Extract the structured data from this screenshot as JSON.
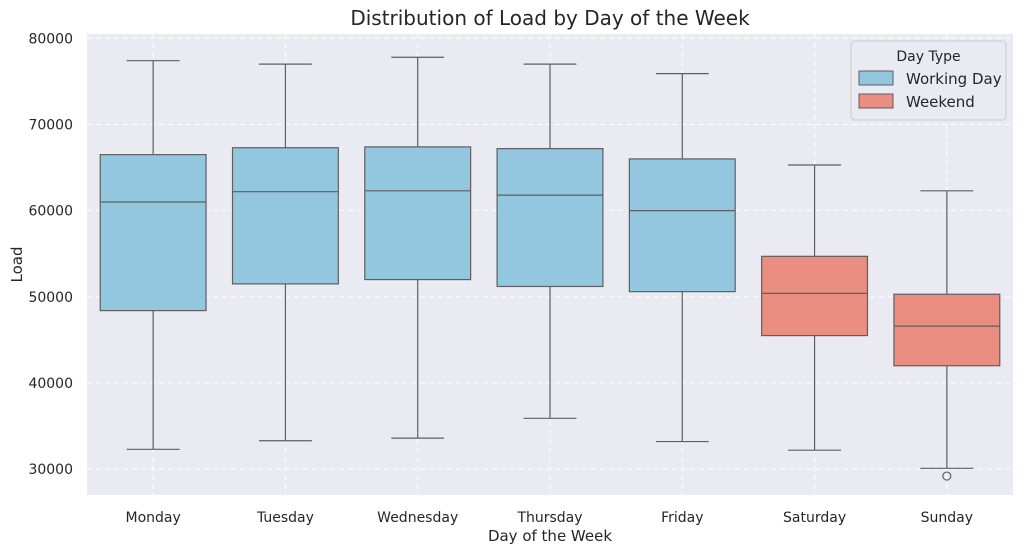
{
  "chart_data": {
    "type": "box",
    "title": "Distribution of Load by Day of the Week",
    "xlabel": "Day of the Week",
    "ylabel": "Load",
    "ylim": [
      27000,
      80500
    ],
    "yticks": [
      30000,
      40000,
      50000,
      60000,
      70000,
      80000
    ],
    "grid": true,
    "legend": {
      "title": "Day Type",
      "placement": "top-right",
      "entries": [
        {
          "label": "Working Day",
          "color": "#92c7df"
        },
        {
          "label": "Weekend",
          "color": "#e98e80"
        }
      ]
    },
    "categories": [
      "Monday",
      "Tuesday",
      "Wednesday",
      "Thursday",
      "Friday",
      "Saturday",
      "Sunday"
    ],
    "boxes": [
      {
        "day": "Monday",
        "group": "Working Day",
        "whisker_low": 32300,
        "q1": 48400,
        "median": 61000,
        "q3": 66500,
        "whisker_high": 77400,
        "outliers": []
      },
      {
        "day": "Tuesday",
        "group": "Working Day",
        "whisker_low": 33300,
        "q1": 51500,
        "median": 62200,
        "q3": 67300,
        "whisker_high": 77000,
        "outliers": []
      },
      {
        "day": "Wednesday",
        "group": "Working Day",
        "whisker_low": 33600,
        "q1": 52000,
        "median": 62300,
        "q3": 67400,
        "whisker_high": 77800,
        "outliers": []
      },
      {
        "day": "Thursday",
        "group": "Working Day",
        "whisker_low": 35900,
        "q1": 51200,
        "median": 61800,
        "q3": 67200,
        "whisker_high": 77000,
        "outliers": []
      },
      {
        "day": "Friday",
        "group": "Working Day",
        "whisker_low": 33200,
        "q1": 50600,
        "median": 60000,
        "q3": 66000,
        "whisker_high": 75900,
        "outliers": []
      },
      {
        "day": "Saturday",
        "group": "Weekend",
        "whisker_low": 32200,
        "q1": 45500,
        "median": 50400,
        "q3": 54700,
        "whisker_high": 65300,
        "outliers": []
      },
      {
        "day": "Sunday",
        "group": "Weekend",
        "whisker_low": 30100,
        "q1": 42000,
        "median": 46600,
        "q3": 50300,
        "whisker_high": 62300,
        "outliers": [
          29200
        ]
      }
    ],
    "colors": {
      "background": "#eaeaf2",
      "grid": "#ffffff",
      "edge": "#5f5f5f",
      "Working Day": "#92c7df",
      "Weekend": "#e98e80"
    }
  }
}
